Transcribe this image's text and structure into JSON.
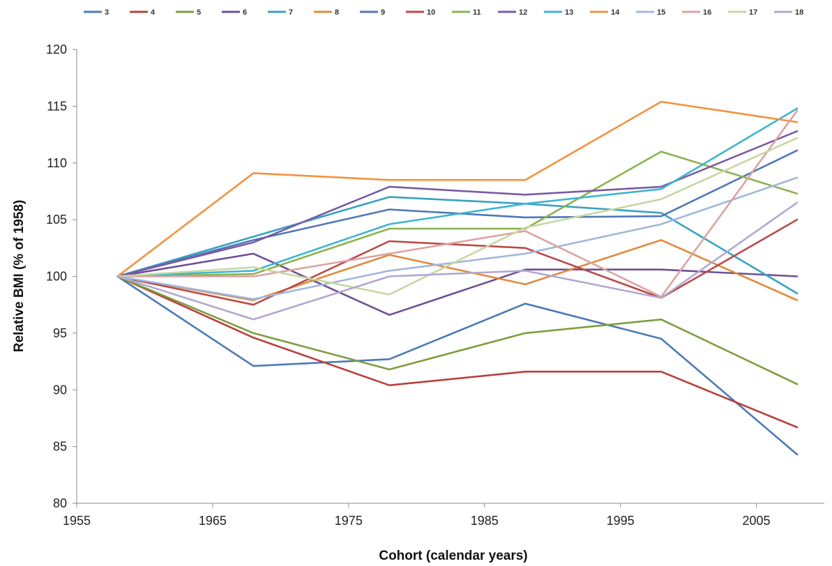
{
  "chart_data": {
    "type": "line",
    "xlabel": "Cohort (calendar years)",
    "ylabel": "Relative BMI (% of 1958)",
    "xlim": [
      1955,
      2010
    ],
    "ylim": [
      80,
      120
    ],
    "xticks": [
      1955,
      1965,
      1975,
      1985,
      1995,
      2005
    ],
    "yticks": [
      80,
      85,
      90,
      95,
      100,
      105,
      110,
      115,
      120
    ],
    "grid": false,
    "legend_position": "top",
    "x": [
      1958,
      1968,
      1978,
      1988,
      1998,
      2008
    ],
    "series": [
      {
        "name": "3",
        "color": "#4a7ab8",
        "values": [
          100,
          92.1,
          92.7,
          97.6,
          94.5,
          84.3
        ]
      },
      {
        "name": "4",
        "color": "#b8403c",
        "values": [
          100,
          94.6,
          90.4,
          91.6,
          91.6,
          86.7
        ]
      },
      {
        "name": "5",
        "color": "#7e9d3e",
        "values": [
          100,
          95.0,
          91.8,
          95.0,
          96.2,
          90.5
        ]
      },
      {
        "name": "6",
        "color": "#6c4f94",
        "values": [
          100,
          102.0,
          96.6,
          100.6,
          100.6,
          100.0
        ]
      },
      {
        "name": "7",
        "color": "#37a2bf",
        "values": [
          100,
          103.5,
          107.0,
          106.4,
          105.6,
          98.5
        ]
      },
      {
        "name": "8",
        "color": "#e08a3c",
        "values": [
          100,
          97.9,
          101.9,
          99.3,
          103.2,
          97.9
        ]
      },
      {
        "name": "9",
        "color": "#4f78b6",
        "values": [
          100,
          103.2,
          105.9,
          105.2,
          105.3,
          111.1
        ]
      },
      {
        "name": "10",
        "color": "#b94a48",
        "values": [
          100,
          97.5,
          103.1,
          102.5,
          98.1,
          105.0
        ]
      },
      {
        "name": "11",
        "color": "#8db24e",
        "values": [
          100,
          100.2,
          104.2,
          104.2,
          111.0,
          107.3
        ]
      },
      {
        "name": "12",
        "color": "#7a5aa4",
        "values": [
          100,
          103.0,
          107.9,
          107.2,
          107.9,
          112.8
        ]
      },
      {
        "name": "13",
        "color": "#3eb5cf",
        "values": [
          100,
          100.5,
          104.6,
          106.4,
          107.7,
          114.8
        ]
      },
      {
        "name": "14",
        "color": "#f2923d",
        "values": [
          100,
          109.1,
          108.5,
          108.5,
          115.4,
          113.6
        ]
      },
      {
        "name": "15",
        "color": "#9fb8dc",
        "values": [
          100,
          98.0,
          100.5,
          102.0,
          104.6,
          108.7
        ]
      },
      {
        "name": "16",
        "color": "#dca3a0",
        "values": [
          100,
          100.0,
          102.0,
          104.0,
          98.2,
          114.6
        ]
      },
      {
        "name": "17",
        "color": "#c6d7a2",
        "values": [
          100,
          100.8,
          98.4,
          104.3,
          106.8,
          112.2
        ]
      },
      {
        "name": "18",
        "color": "#b3a7cf",
        "values": [
          100,
          96.2,
          100.0,
          100.5,
          98.1,
          106.5
        ]
      }
    ]
  }
}
